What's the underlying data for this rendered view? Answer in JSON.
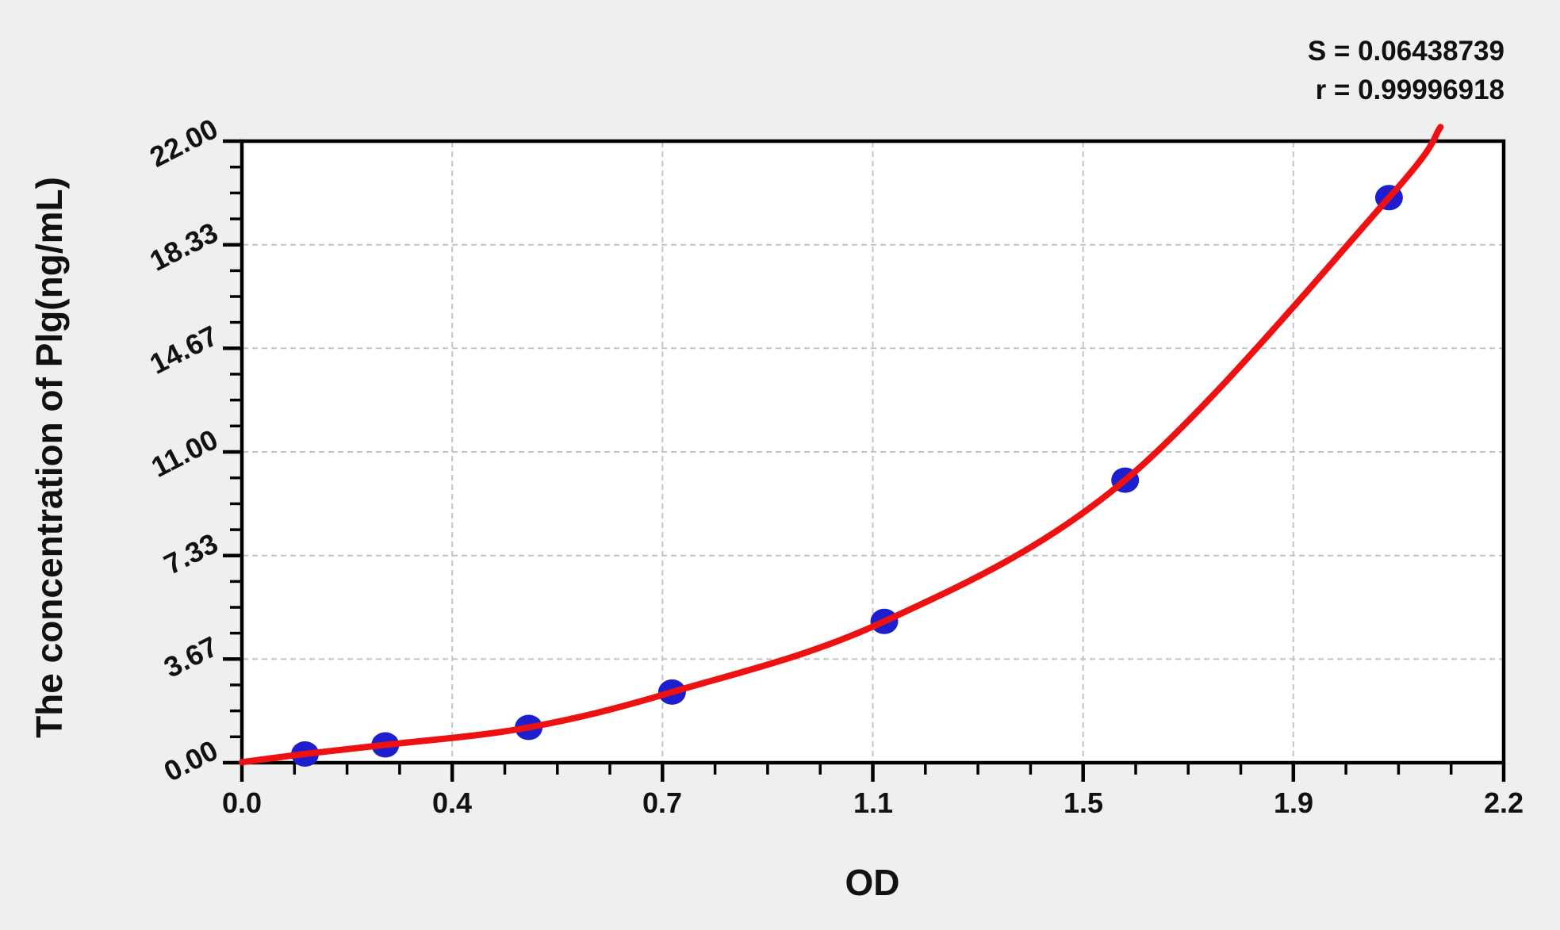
{
  "chart_data": {
    "type": "scatter",
    "xlabel": "OD",
    "ylabel": "The concentration of Plg(ng/mL)",
    "xlim": [
      0,
      2.2
    ],
    "ylim": [
      0,
      22
    ],
    "grid": "dashed",
    "minor_divisions_per_major": 4,
    "x_major_ticks": [
      {
        "value": 0.0,
        "label": "0.0"
      },
      {
        "value": 0.3667,
        "label": "0.4"
      },
      {
        "value": 0.7333,
        "label": "0.7"
      },
      {
        "value": 1.1,
        "label": "1.1"
      },
      {
        "value": 1.4667,
        "label": "1.5"
      },
      {
        "value": 1.8333,
        "label": "1.9"
      },
      {
        "value": 2.2,
        "label": "2.2"
      }
    ],
    "y_major_ticks": [
      {
        "value": 0.0,
        "label": "0.00"
      },
      {
        "value": 3.67,
        "label": "3.67"
      },
      {
        "value": 7.33,
        "label": "7.33"
      },
      {
        "value": 11.0,
        "label": "11.00"
      },
      {
        "value": 14.67,
        "label": "14.67"
      },
      {
        "value": 18.33,
        "label": "18.33"
      },
      {
        "value": 22.0,
        "label": "22.00"
      }
    ],
    "series": [
      {
        "name": "standard-points",
        "type": "scatter",
        "marker": "ellipse",
        "color": "#1e1ecf",
        "points": [
          {
            "od": 0.11,
            "conc": 0.31
          },
          {
            "od": 0.25,
            "conc": 0.63
          },
          {
            "od": 0.5,
            "conc": 1.25
          },
          {
            "od": 0.75,
            "conc": 2.5
          },
          {
            "od": 1.12,
            "conc": 5.0
          },
          {
            "od": 1.54,
            "conc": 10.0
          },
          {
            "od": 2.0,
            "conc": 20.0
          }
        ]
      },
      {
        "name": "fitted-curve",
        "type": "line",
        "color": "#ee1111",
        "start": {
          "od": 0.0,
          "conc": 0.02
        },
        "end": {
          "od": 2.09,
          "conc": 22.5
        }
      }
    ],
    "annotations": [
      {
        "text": "S = 0.06438739"
      },
      {
        "text": "r = 0.99996918"
      }
    ]
  },
  "colors": {
    "background": "#efefef",
    "plot_background": "#ffffff",
    "axis": "#000000",
    "grid": "#c4c4c4",
    "text": "#111111",
    "curve": "#ee1111",
    "marker": "#1e1ecf"
  }
}
